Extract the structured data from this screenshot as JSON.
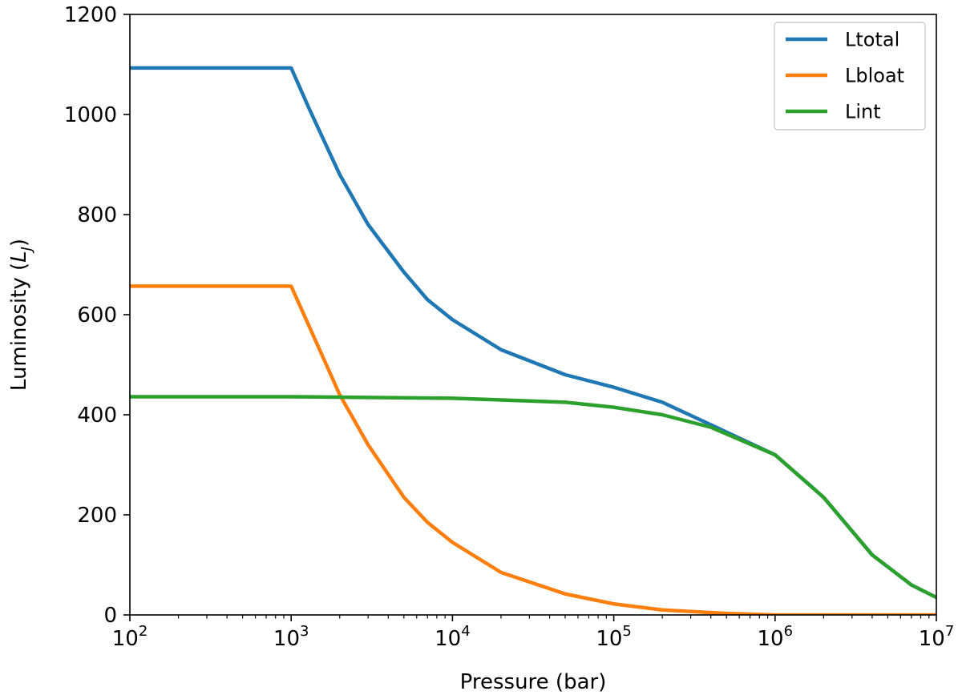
{
  "chart_data": {
    "type": "line",
    "title": "",
    "xlabel": "Pressure (bar)",
    "ylabel_main": "Luminosity (",
    "ylabel_symbol": "L",
    "ylabel_subscript": "J",
    "ylabel_close": ")",
    "xscale": "log",
    "xlim": [
      100,
      10000000
    ],
    "ylim": [
      0,
      1200
    ],
    "grid": false,
    "legend_position": "top-right",
    "x_ticks": [
      {
        "value": 100,
        "base": "10",
        "exp": "2"
      },
      {
        "value": 1000,
        "base": "10",
        "exp": "3"
      },
      {
        "value": 10000,
        "base": "10",
        "exp": "4"
      },
      {
        "value": 100000,
        "base": "10",
        "exp": "5"
      },
      {
        "value": 1000000,
        "base": "10",
        "exp": "6"
      },
      {
        "value": 10000000,
        "base": "10",
        "exp": "7"
      }
    ],
    "y_ticks": [
      {
        "value": 0,
        "label": "0"
      },
      {
        "value": 200,
        "label": "200"
      },
      {
        "value": 400,
        "label": "400"
      },
      {
        "value": 600,
        "label": "600"
      },
      {
        "value": 800,
        "label": "800"
      },
      {
        "value": 1000,
        "label": "1000"
      },
      {
        "value": 1200,
        "label": "1200"
      }
    ],
    "series": [
      {
        "name": "Ltotal",
        "color": "#1f77b4",
        "x": [
          100,
          1000,
          1300,
          2000,
          3000,
          5000,
          7000,
          10000,
          20000,
          50000,
          100000,
          200000,
          400000,
          1000000,
          2000000,
          4000000,
          7000000,
          10000000
        ],
        "y": [
          1093,
          1093,
          1010,
          880,
          780,
          685,
          630,
          590,
          530,
          480,
          455,
          425,
          380,
          320,
          235,
          120,
          60,
          35
        ]
      },
      {
        "name": "Lbloat",
        "color": "#ff7f0e",
        "x": [
          100,
          1000,
          1300,
          2000,
          3000,
          5000,
          7000,
          10000,
          20000,
          50000,
          100000,
          200000,
          500000,
          1000000,
          10000000
        ],
        "y": [
          657,
          657,
          575,
          440,
          340,
          235,
          185,
          145,
          85,
          42,
          22,
          10,
          3,
          0,
          0
        ]
      },
      {
        "name": "Lint",
        "color": "#2ca02c",
        "x": [
          100,
          1000,
          10000,
          50000,
          100000,
          200000,
          400000,
          1000000,
          2000000,
          4000000,
          7000000,
          10000000
        ],
        "y": [
          436,
          436,
          433,
          425,
          415,
          400,
          375,
          320,
          235,
          120,
          60,
          35
        ]
      }
    ]
  }
}
